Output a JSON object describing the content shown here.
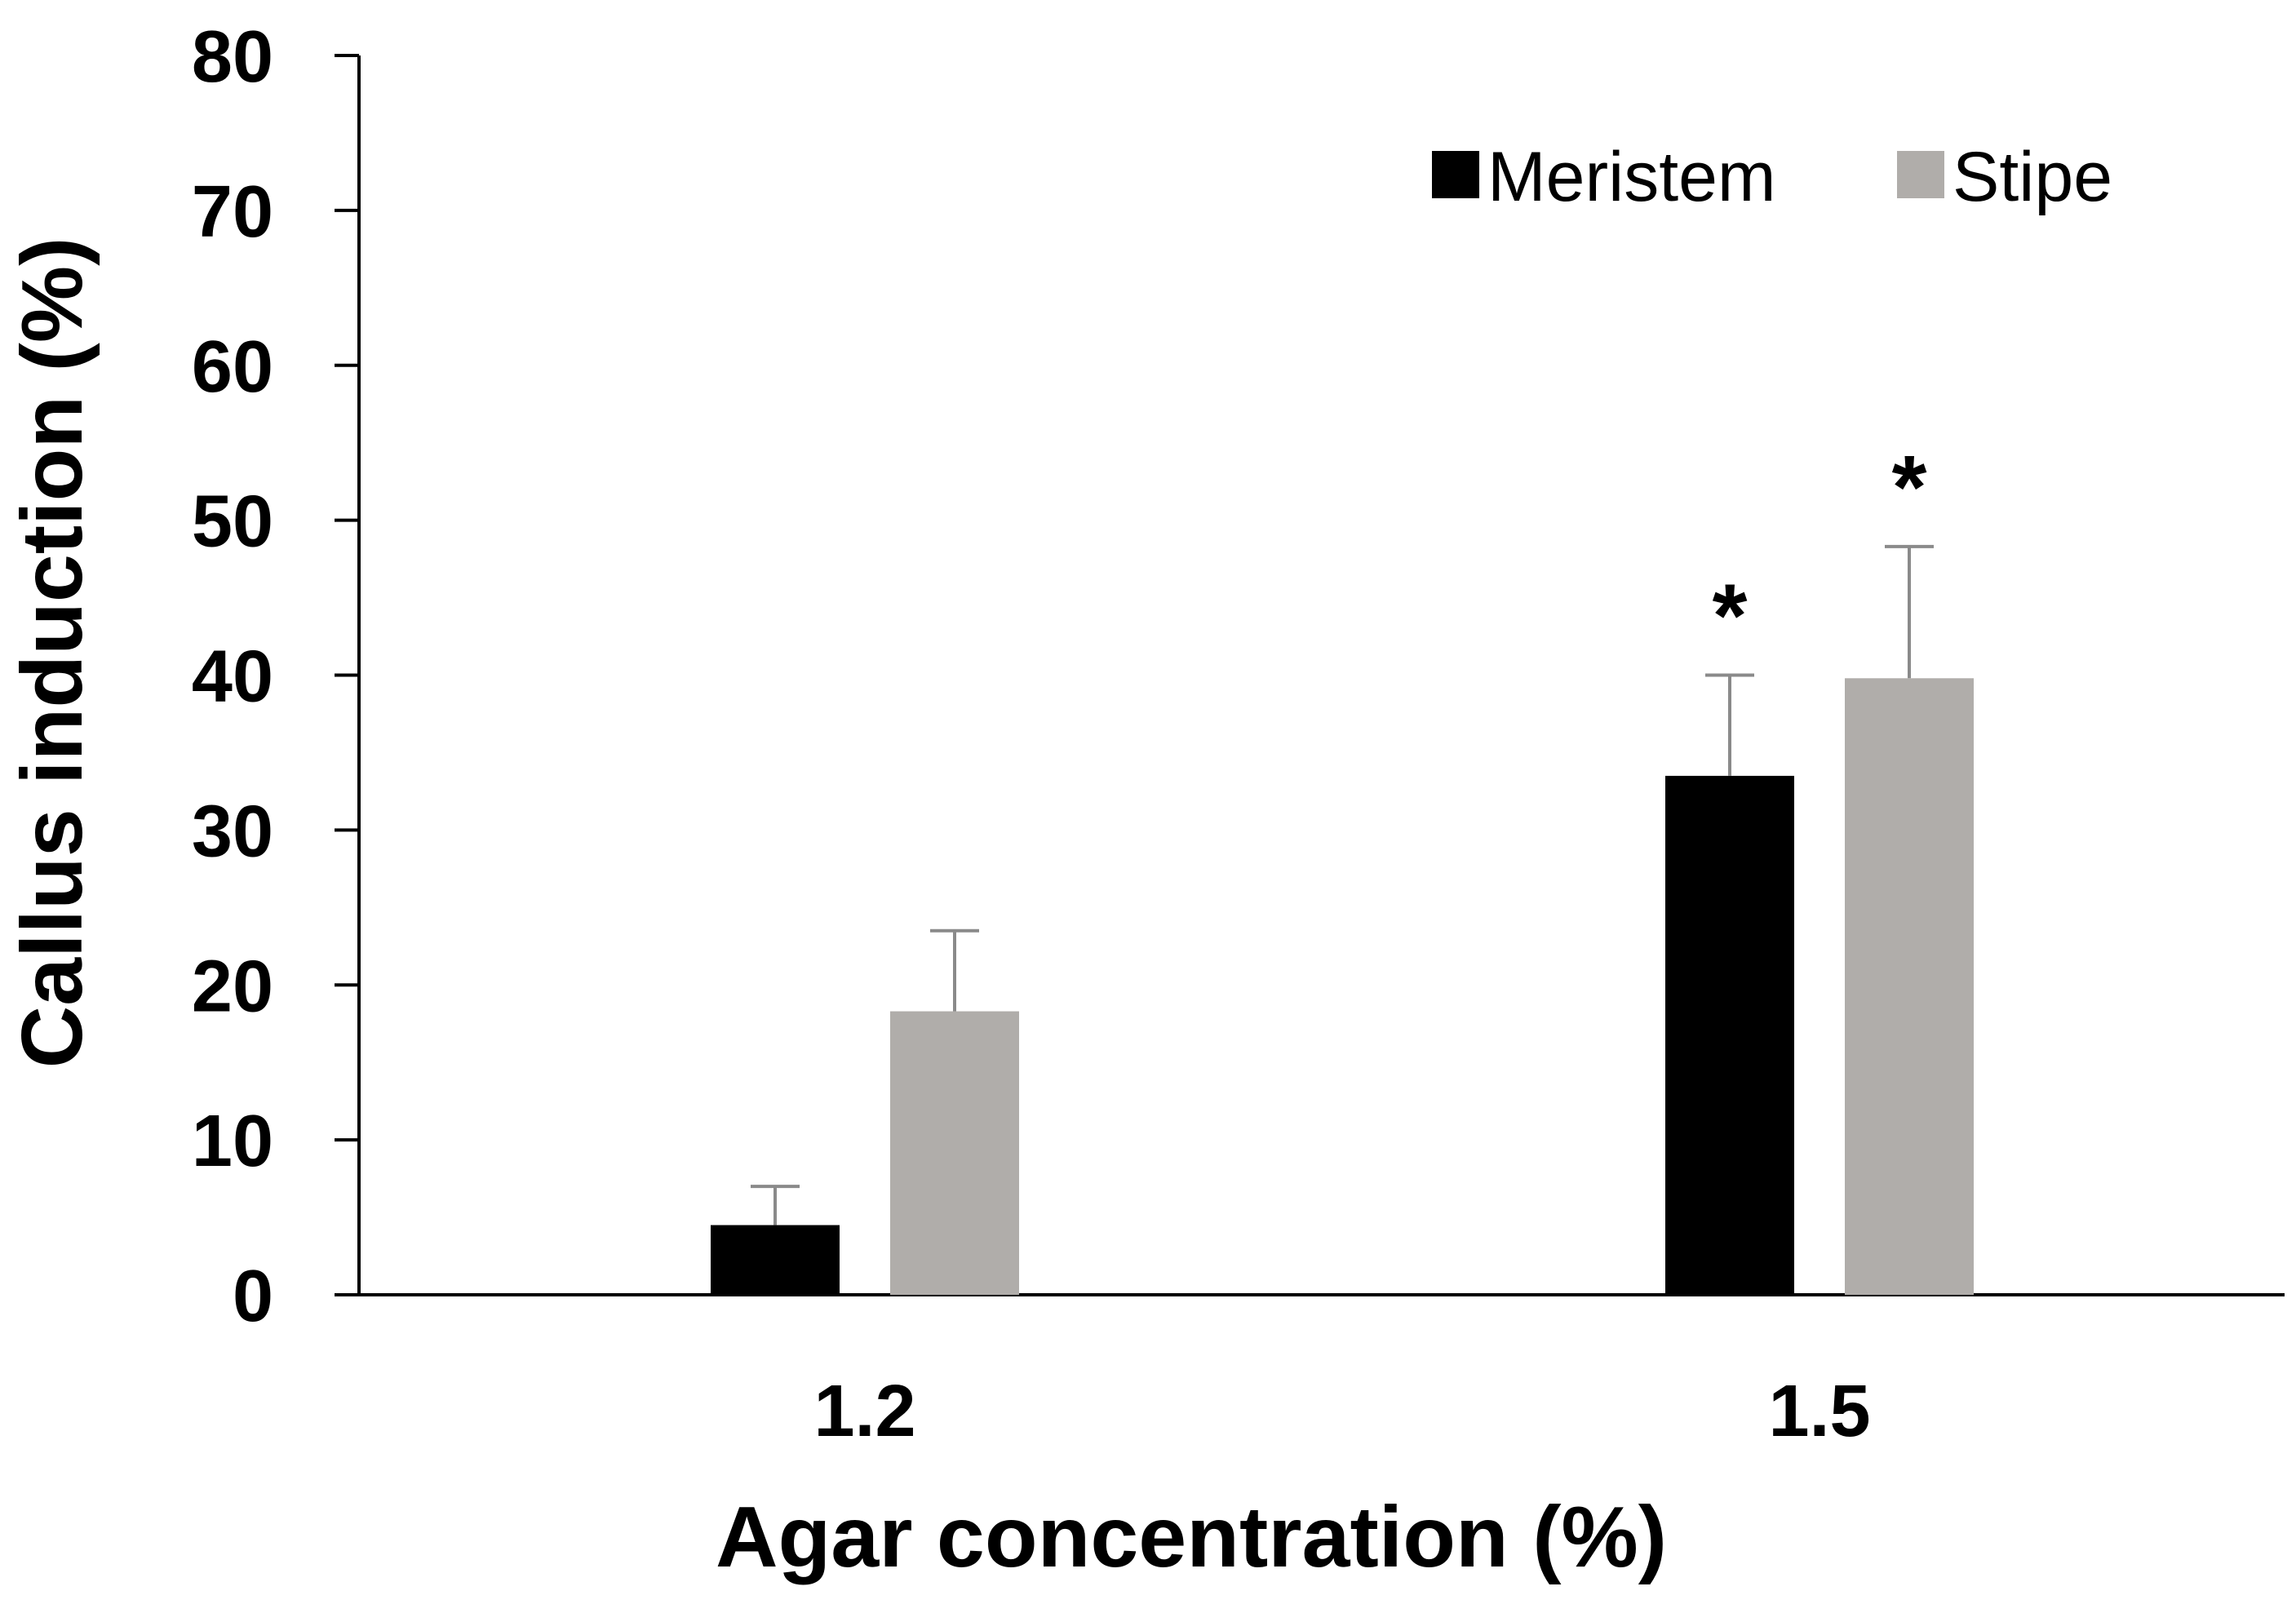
{
  "chart_data": {
    "type": "bar",
    "title": "",
    "xlabel": "Agar concentration (%)",
    "ylabel": "Callus induction (%)",
    "categories": [
      "1.2",
      "1.5"
    ],
    "ylim": [
      0,
      80
    ],
    "yticks": [
      0,
      10,
      20,
      30,
      40,
      50,
      60,
      70,
      80
    ],
    "grid": false,
    "legend_position": "top-right",
    "series": [
      {
        "name": "Meristem",
        "color": "#000000",
        "values": [
          4.5,
          33.5
        ],
        "errors": [
          2.5,
          6.5
        ],
        "annotations": [
          "",
          "*"
        ]
      },
      {
        "name": "Stipe",
        "color": "#b0adaa",
        "values": [
          18.3,
          39.8
        ],
        "errors": [
          5.2,
          8.5
        ],
        "annotations": [
          "",
          "*"
        ]
      }
    ]
  }
}
